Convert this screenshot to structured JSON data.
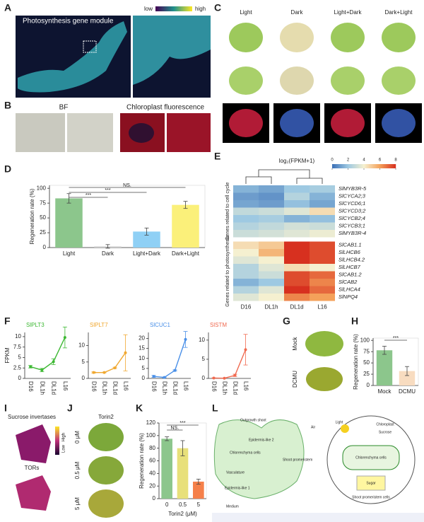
{
  "panel_labels": [
    "A",
    "B",
    "C",
    "D",
    "E",
    "F",
    "G",
    "H",
    "I",
    "J",
    "K",
    "L"
  ],
  "panels": {
    "A": {
      "title": "Photosynthesis gene module",
      "scale_low": "low",
      "scale_high": "high"
    },
    "B": {
      "left_title": "BF",
      "right_title": "Chloroplast fluorescence"
    },
    "C": {
      "columns": [
        "Light",
        "Dark",
        "Light+Dark",
        "Dark+Light"
      ]
    },
    "G": {
      "rows": [
        "Mock",
        "DCMU"
      ]
    },
    "I": {
      "top_title": "Sucrose invertases",
      "bottom_title": "TORs",
      "scale_low": "Low",
      "scale_high": "High"
    },
    "J": {
      "title": "Torin2",
      "rows": [
        "0 μM",
        "0.5 μM",
        "5 μM"
      ]
    },
    "L": {
      "labels": [
        "Outgrowth shoot",
        "Air",
        "Epidermis-like 2",
        "Chlorenchyma cells",
        "Shoot promeristem",
        "Vasculature",
        "Epidermis-like 1",
        "Medium",
        "Light",
        "Chloroplast",
        "Sucrose",
        "Chlorenchyma cells",
        "Sugar",
        "Shoot promeristem cells"
      ]
    }
  },
  "chart_data": [
    {
      "type": "bar",
      "ylabel": "Regeneration rate (%)",
      "categories": [
        "Light",
        "Dark",
        "Light+Dark",
        "Dark+Light"
      ],
      "values": [
        83,
        2,
        27,
        72
      ],
      "errors": [
        8,
        3,
        6,
        6
      ],
      "colors": [
        "#8cc68c",
        "#d0d0d0",
        "#8fd0f5",
        "#fbf07a"
      ],
      "ylim": [
        0,
        105
      ],
      "yticks": [
        0,
        25,
        50,
        75,
        100
      ],
      "annotations": [
        "***",
        "***",
        "NS."
      ]
    },
    {
      "type": "heatmap",
      "colorbar_title": "log₂(FPKM+1)",
      "colorbar_ticks": [
        0,
        2,
        4,
        6,
        8
      ],
      "vlim": [
        0,
        8
      ],
      "columns": [
        "D16",
        "DL1h",
        "DL1d",
        "L16"
      ],
      "groups": [
        "Genes related to cell cycle",
        "Genes related to photosynthesis"
      ],
      "rows": [
        "SlMYB3R-5",
        "SlCYCA2;3",
        "SlCYCD6;1",
        "SlCYCD3;2",
        "SlCYCB2;4",
        "SlCYCB3;1",
        "SlMYB3R-4",
        "SlCAB1.1",
        "SlLHCB6",
        "SlLHCB4.2",
        "SlLHCB7",
        "SlCAB1.2",
        "SlCAB2",
        "SlLHCA4",
        "SlNPQ4"
      ],
      "values": [
        [
          1.5,
          1.2,
          2.0,
          2.2
        ],
        [
          1.0,
          0.8,
          2.5,
          1.5
        ],
        [
          1.2,
          1.0,
          1.8,
          1.2
        ],
        [
          2.8,
          3.0,
          3.5,
          4.5
        ],
        [
          2.0,
          2.2,
          1.5,
          1.8
        ],
        [
          2.5,
          2.8,
          3.2,
          3.0
        ],
        [
          3.0,
          3.2,
          3.5,
          3.8
        ],
        [
          4.5,
          5.0,
          8,
          7.5
        ],
        [
          4.0,
          5.5,
          8,
          7.5
        ],
        [
          3.5,
          4.0,
          8,
          7.5
        ],
        [
          2.5,
          3.5,
          4.5,
          4.0
        ],
        [
          2.5,
          3.0,
          7.5,
          7
        ],
        [
          1.5,
          2.0,
          7.5,
          6.5
        ],
        [
          2.5,
          3.5,
          8,
          7
        ],
        [
          3.5,
          4.0,
          6.5,
          6
        ]
      ]
    },
    {
      "type": "line",
      "title": "SlPLT3",
      "color": "#3cb832",
      "ylabel": "FPKM",
      "categories": [
        "D16",
        "DL1h",
        "DL1d",
        "L16"
      ],
      "values": [
        2.8,
        2.0,
        4,
        9.8
      ],
      "errors": [
        0.3,
        0.4,
        0.7,
        2.5
      ],
      "ylim": [
        0,
        11
      ],
      "yticks": [
        0,
        2.5,
        5,
        7.5,
        10
      ]
    },
    {
      "type": "line",
      "title": "SlPLT7",
      "color": "#f0a830",
      "categories": [
        "D16",
        "DL1h",
        "DL1d",
        "L16"
      ],
      "values": [
        1.8,
        1.8,
        3.2,
        7.8
      ],
      "errors": [
        0.2,
        0.1,
        0.2,
        5.5
      ],
      "ylim": [
        0,
        14
      ],
      "yticks": [
        0,
        5,
        10
      ]
    },
    {
      "type": "line",
      "title": "SlCUC1",
      "color": "#4a90e8",
      "categories": [
        "D16",
        "DL1h",
        "DL1d",
        "L16"
      ],
      "values": [
        1.0,
        0.5,
        4,
        19.5
      ],
      "errors": [
        0.5,
        0.2,
        0.3,
        4
      ],
      "ylim": [
        0,
        23
      ],
      "yticks": [
        0,
        5,
        10,
        15,
        20
      ]
    },
    {
      "type": "line",
      "title": "SlSTM",
      "color": "#f06a50",
      "categories": [
        "D16",
        "DL1h",
        "DL1d",
        "L16"
      ],
      "values": [
        0.1,
        0.05,
        0.8,
        7.5
      ],
      "errors": [
        0.05,
        0.05,
        0.3,
        4
      ],
      "ylim": [
        0,
        12
      ],
      "yticks": [
        0,
        5,
        10
      ]
    },
    {
      "type": "bar",
      "ylabel": "Regeneration rate (%)",
      "categories": [
        "Mock",
        "DCMU"
      ],
      "values": [
        78,
        32
      ],
      "errors": [
        9,
        10
      ],
      "colors": [
        "#8cc68c",
        "#f8dcc0"
      ],
      "ylim": [
        0,
        105
      ],
      "yticks": [
        0,
        25,
        50,
        75,
        100
      ],
      "annotations": [
        "***"
      ]
    },
    {
      "type": "bar",
      "ylabel": "Regeneration rate (%)",
      "xlabel": "Torin2 (μM)",
      "categories": [
        "0",
        "0.5",
        "5"
      ],
      "values": [
        95,
        80,
        27
      ],
      "errors": [
        3,
        12,
        4
      ],
      "colors": [
        "#8cc68c",
        "#e8e07a",
        "#f5804a"
      ],
      "ylim": [
        0,
        120
      ],
      "yticks": [
        0,
        20,
        40,
        60,
        80,
        100,
        120
      ],
      "annotations": [
        "NS.",
        "***"
      ]
    }
  ]
}
